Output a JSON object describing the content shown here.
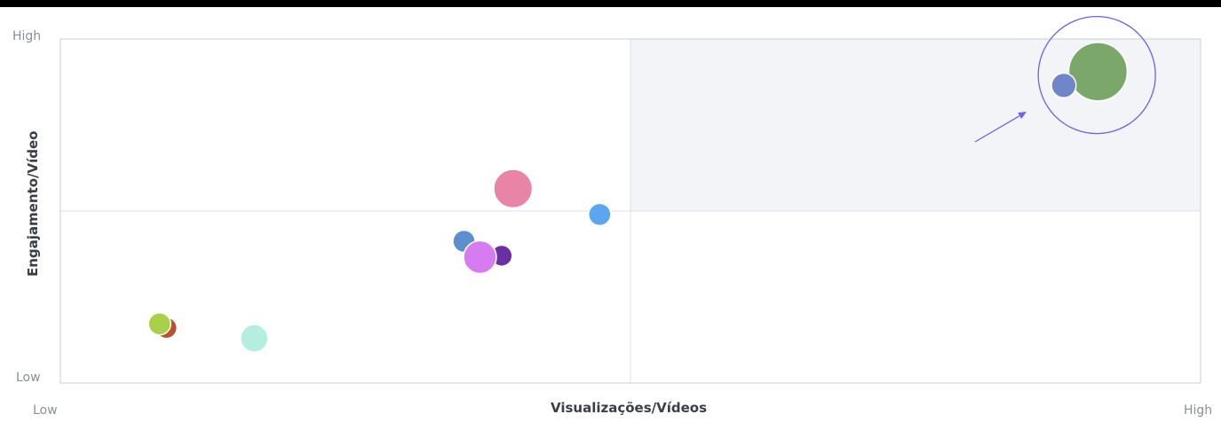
{
  "chart_data": {
    "type": "scatter",
    "title": "",
    "xlabel": "Visualizações/Vídeos",
    "ylabel": "Engajamento/Vídeo",
    "x_tick_labels": {
      "low": "Low",
      "high": "High"
    },
    "y_tick_labels": {
      "low": "Low",
      "high": "High"
    },
    "xlim": [
      0,
      1
    ],
    "ylim": [
      0,
      1
    ],
    "grid": true,
    "quadrant_dividers": {
      "x": 0.5,
      "y": 0.5
    },
    "highlighted_quadrant": "top-right",
    "annotation": {
      "type": "circle-with-arrow",
      "target": "top-right cluster"
    },
    "points": [
      {
        "x": 0.91,
        "y": 0.905,
        "size": 1.0,
        "color": "#7ba86a"
      },
      {
        "x": 0.88,
        "y": 0.865,
        "size": 0.42,
        "color": "#6f86c8"
      },
      {
        "x": 0.397,
        "y": 0.565,
        "size": 0.66,
        "color": "#e884a6"
      },
      {
        "x": 0.473,
        "y": 0.49,
        "size": 0.38,
        "color": "#5aa7f0"
      },
      {
        "x": 0.354,
        "y": 0.412,
        "size": 0.38,
        "color": "#5b8fd0"
      },
      {
        "x": 0.387,
        "y": 0.37,
        "size": 0.36,
        "color": "#6b2fa5"
      },
      {
        "x": 0.368,
        "y": 0.366,
        "size": 0.56,
        "color": "#d77cf0"
      },
      {
        "x": 0.093,
        "y": 0.16,
        "size": 0.36,
        "color": "#b8532f"
      },
      {
        "x": 0.087,
        "y": 0.172,
        "size": 0.38,
        "color": "#aad04a"
      },
      {
        "x": 0.17,
        "y": 0.13,
        "size": 0.47,
        "color": "#b3eedf"
      }
    ],
    "colors": {
      "highlight_fill": "#f3f4f7",
      "grid": "#dde1e7",
      "frame": "#c9ced6",
      "annotation": "#6b5ff5"
    }
  }
}
